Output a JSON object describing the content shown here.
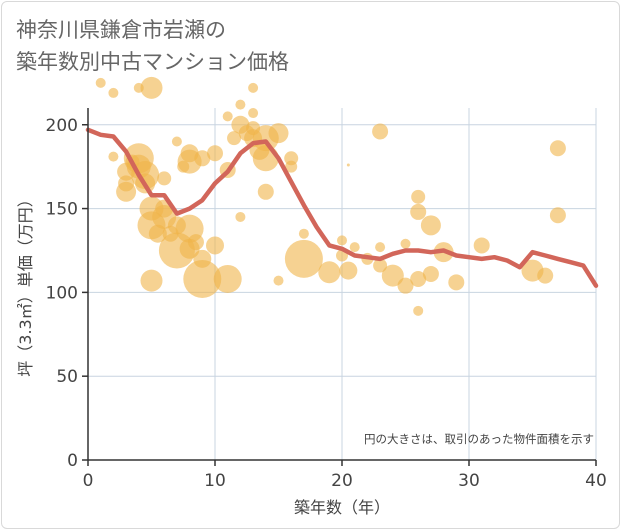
{
  "title_lines": [
    "神奈川県鎌倉市岩瀬の",
    "築年数別中古マンション価格"
  ],
  "chart_data": {
    "type": "scatter",
    "xlabel": "築年数（年）",
    "ylabel": "坪（3.3㎡）単価（万円）",
    "xlim": [
      0,
      40
    ],
    "ylim": [
      0,
      210
    ],
    "xticks": [
      0,
      10,
      20,
      30,
      40
    ],
    "yticks": [
      0,
      50,
      100,
      150,
      200
    ],
    "grid": true,
    "note": "円の大きさは、取引のあった物件面積を示す",
    "colors": {
      "bubble": "#f0b44a",
      "line": "#d2665a",
      "grid": "#c8d4e0",
      "axis": "#333333"
    },
    "bubbles": [
      {
        "x": 1,
        "y": 225,
        "r": 5
      },
      {
        "x": 2,
        "y": 219,
        "r": 5
      },
      {
        "x": 2,
        "y": 181,
        "r": 5
      },
      {
        "x": 3,
        "y": 165,
        "r": 8
      },
      {
        "x": 3,
        "y": 160,
        "r": 10
      },
      {
        "x": 3,
        "y": 172,
        "r": 9
      },
      {
        "x": 3.5,
        "y": 178,
        "r": 7
      },
      {
        "x": 4,
        "y": 222,
        "r": 5
      },
      {
        "x": 4,
        "y": 180,
        "r": 15
      },
      {
        "x": 4,
        "y": 175,
        "r": 12
      },
      {
        "x": 4.5,
        "y": 170,
        "r": 14
      },
      {
        "x": 4.5,
        "y": 165,
        "r": 10
      },
      {
        "x": 5,
        "y": 222,
        "r": 11
      },
      {
        "x": 5,
        "y": 150,
        "r": 12
      },
      {
        "x": 5,
        "y": 140,
        "r": 14
      },
      {
        "x": 5,
        "y": 107,
        "r": 11
      },
      {
        "x": 5.5,
        "y": 135,
        "r": 9
      },
      {
        "x": 6,
        "y": 168,
        "r": 7
      },
      {
        "x": 6,
        "y": 150,
        "r": 9
      },
      {
        "x": 6,
        "y": 145,
        "r": 12
      },
      {
        "x": 6.5,
        "y": 135,
        "r": 8
      },
      {
        "x": 7,
        "y": 190,
        "r": 5
      },
      {
        "x": 7,
        "y": 125,
        "r": 18
      },
      {
        "x": 7,
        "y": 140,
        "r": 9
      },
      {
        "x": 7.5,
        "y": 175,
        "r": 6
      },
      {
        "x": 8,
        "y": 183,
        "r": 9
      },
      {
        "x": 8,
        "y": 178,
        "r": 12
      },
      {
        "x": 8,
        "y": 138,
        "r": 14
      },
      {
        "x": 8,
        "y": 126,
        "r": 10
      },
      {
        "x": 8.5,
        "y": 130,
        "r": 8
      },
      {
        "x": 9,
        "y": 108,
        "r": 19
      },
      {
        "x": 9,
        "y": 180,
        "r": 8
      },
      {
        "x": 9,
        "y": 120,
        "r": 9
      },
      {
        "x": 10,
        "y": 183,
        "r": 8
      },
      {
        "x": 10,
        "y": 128,
        "r": 9
      },
      {
        "x": 11,
        "y": 108,
        "r": 14
      },
      {
        "x": 11,
        "y": 173,
        "r": 8
      },
      {
        "x": 11,
        "y": 205,
        "r": 5
      },
      {
        "x": 11.5,
        "y": 192,
        "r": 7
      },
      {
        "x": 12,
        "y": 212,
        "r": 5
      },
      {
        "x": 12,
        "y": 200,
        "r": 9
      },
      {
        "x": 12,
        "y": 145,
        "r": 5
      },
      {
        "x": 12.5,
        "y": 195,
        "r": 8
      },
      {
        "x": 13,
        "y": 222,
        "r": 5
      },
      {
        "x": 13,
        "y": 207,
        "r": 5
      },
      {
        "x": 13,
        "y": 198,
        "r": 7
      },
      {
        "x": 13,
        "y": 192,
        "r": 9
      },
      {
        "x": 13.5,
        "y": 185,
        "r": 10
      },
      {
        "x": 14,
        "y": 192,
        "r": 13
      },
      {
        "x": 14,
        "y": 180,
        "r": 13
      },
      {
        "x": 14,
        "y": 160,
        "r": 8
      },
      {
        "x": 15,
        "y": 195,
        "r": 10
      },
      {
        "x": 15,
        "y": 107,
        "r": 5
      },
      {
        "x": 16,
        "y": 180,
        "r": 7
      },
      {
        "x": 16,
        "y": 175,
        "r": 6
      },
      {
        "x": 17,
        "y": 135,
        "r": 5
      },
      {
        "x": 17,
        "y": 120,
        "r": 19
      },
      {
        "x": 19,
        "y": 112,
        "r": 11
      },
      {
        "x": 20,
        "y": 122,
        "r": 6
      },
      {
        "x": 20,
        "y": 131,
        "r": 5
      },
      {
        "x": 20.5,
        "y": 176,
        "r": 1.5
      },
      {
        "x": 20.5,
        "y": 113,
        "r": 9
      },
      {
        "x": 21,
        "y": 127,
        "r": 5
      },
      {
        "x": 22,
        "y": 120,
        "r": 6
      },
      {
        "x": 23,
        "y": 196,
        "r": 8
      },
      {
        "x": 23,
        "y": 127,
        "r": 5
      },
      {
        "x": 23,
        "y": 116,
        "r": 7
      },
      {
        "x": 24,
        "y": 110,
        "r": 11
      },
      {
        "x": 25,
        "y": 129,
        "r": 5
      },
      {
        "x": 25,
        "y": 104,
        "r": 8
      },
      {
        "x": 26,
        "y": 157,
        "r": 7
      },
      {
        "x": 26,
        "y": 148,
        "r": 8
      },
      {
        "x": 26,
        "y": 108,
        "r": 8
      },
      {
        "x": 26,
        "y": 89,
        "r": 5
      },
      {
        "x": 27,
        "y": 140,
        "r": 10
      },
      {
        "x": 27,
        "y": 111,
        "r": 8
      },
      {
        "x": 28,
        "y": 124,
        "r": 10
      },
      {
        "x": 29,
        "y": 106,
        "r": 8
      },
      {
        "x": 31,
        "y": 128,
        "r": 8
      },
      {
        "x": 35,
        "y": 113,
        "r": 11
      },
      {
        "x": 36,
        "y": 110,
        "r": 8
      },
      {
        "x": 37,
        "y": 186,
        "r": 8
      },
      {
        "x": 37,
        "y": 146,
        "r": 8
      }
    ],
    "trend_line": {
      "x": [
        0,
        1,
        2,
        3,
        4,
        5,
        6,
        7,
        8,
        9,
        10,
        11,
        12,
        13,
        14,
        15,
        16,
        17,
        18,
        19,
        20,
        21,
        22,
        23,
        24,
        25,
        26,
        27,
        28,
        29,
        30,
        31,
        32,
        33,
        34,
        35,
        36,
        37,
        38,
        39,
        40
      ],
      "y": [
        197,
        194,
        193,
        184,
        170,
        158,
        158,
        147,
        150,
        155,
        165,
        172,
        183,
        189,
        190,
        180,
        166,
        152,
        139,
        128,
        126,
        122,
        121,
        120,
        123,
        125,
        125,
        124,
        125,
        122,
        121,
        120,
        121,
        119,
        115,
        124,
        122,
        120,
        118,
        116,
        104
      ]
    }
  }
}
